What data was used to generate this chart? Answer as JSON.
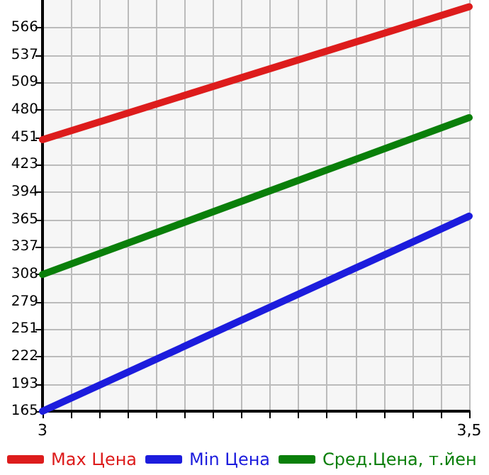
{
  "chart_data": {
    "type": "line",
    "x": [
      3,
      3.5
    ],
    "series": [
      {
        "name": "Max Цена",
        "color": "#dd1c1c",
        "values": [
          449,
          588
        ]
      },
      {
        "name": "Min Цена",
        "color": "#1c1cdd",
        "values": [
          165,
          369
        ]
      },
      {
        "name": "Сред.Цена, т.йен",
        "color": "#0a7f0a",
        "values": [
          308,
          472
        ]
      }
    ],
    "xlim": [
      3,
      3.5
    ],
    "xticks": [
      3,
      {
        "value": 3.0333,
        "label": null
      },
      {
        "value": 3.0667,
        "label": null
      },
      {
        "value": 3.1,
        "label": null
      },
      {
        "value": 3.1333,
        "label": null
      },
      {
        "value": 3.1667,
        "label": null
      },
      {
        "value": 3.2,
        "label": null
      },
      {
        "value": 3.2333,
        "label": null
      },
      {
        "value": 3.2667,
        "label": null
      },
      {
        "value": 3.3,
        "label": null
      },
      {
        "value": 3.3333,
        "label": null
      },
      {
        "value": 3.3667,
        "label": null
      },
      {
        "value": 3.4,
        "label": null
      },
      {
        "value": 3.4333,
        "label": null
      },
      {
        "value": 3.4667,
        "label": null
      },
      {
        "value": 3.5,
        "label": "3,5"
      }
    ],
    "ylim": [
      165,
      595
    ],
    "yticks": [
      165,
      193,
      222,
      251,
      279,
      308,
      337,
      365,
      394,
      423,
      451,
      480,
      509,
      537,
      566
    ],
    "grid": true,
    "legend": "bottom",
    "marker": "none",
    "line_style": "solid"
  }
}
